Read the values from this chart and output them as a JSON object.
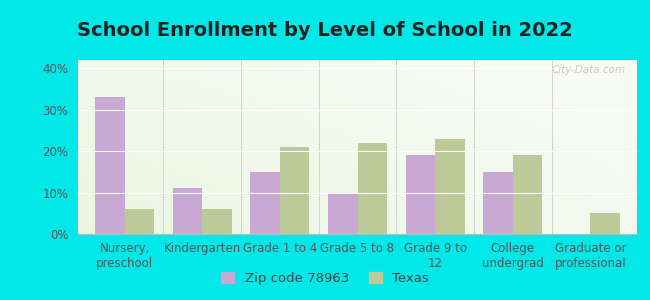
{
  "title": "School Enrollment by Level of School in 2022",
  "categories": [
    "Nursery,\npreschool",
    "Kindergarten",
    "Grade 1 to 4",
    "Grade 5 to 8",
    "Grade 9 to\n12",
    "College\nundergrad",
    "Graduate or\nprofessional"
  ],
  "zip_values": [
    33,
    11,
    15,
    10,
    19,
    15,
    0
  ],
  "texas_values": [
    6,
    6,
    21,
    22,
    23,
    19,
    5
  ],
  "zip_color": "#c9a8d4",
  "texas_color": "#bec99a",
  "background_outer": "#00e8e8",
  "background_inner_tl": "#e8f5e0",
  "background_inner_br": "#f5faf5",
  "ylim": [
    0,
    42
  ],
  "yticks": [
    0,
    10,
    20,
    30,
    40
  ],
  "ytick_labels": [
    "0%",
    "10%",
    "20%",
    "30%",
    "40%"
  ],
  "zip_label": "Zip code 78963",
  "texas_label": "Texas",
  "title_fontsize": 14,
  "tick_fontsize": 8.5,
  "legend_fontsize": 9.5,
  "watermark": "City-Data.com"
}
